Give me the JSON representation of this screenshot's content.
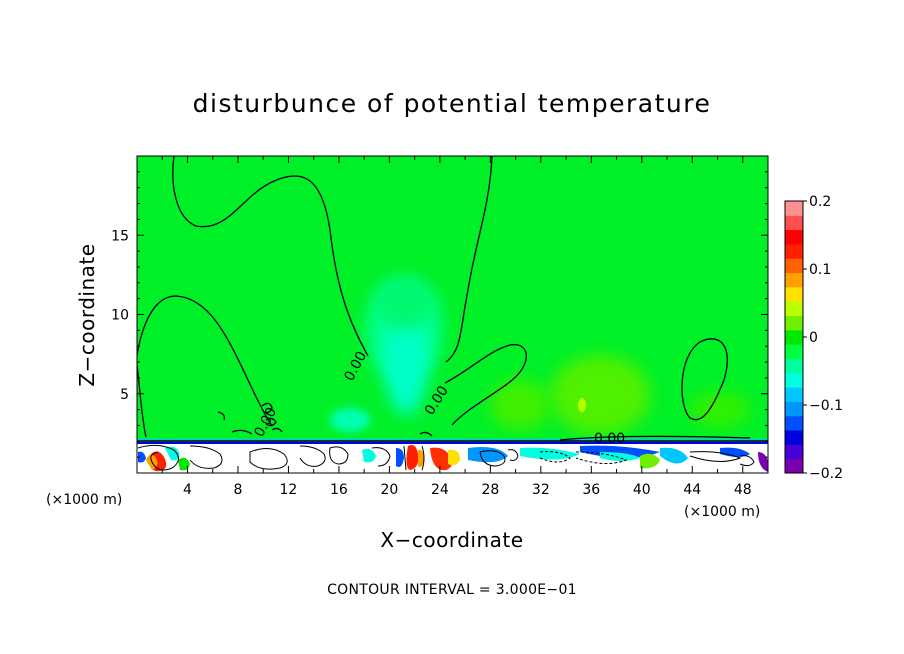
{
  "chart_data": {
    "type": "heatmap",
    "title": "disturbunce of potential temperature",
    "xlabel": "X−coordinate",
    "ylabel": "Z−coordinate",
    "x_unit_left": "(×1000 m)",
    "x_unit_right": "(×1000 m)",
    "xlim": [
      0,
      50
    ],
    "ylim": [
      0,
      20
    ],
    "x_ticks": [
      4,
      8,
      12,
      16,
      20,
      24,
      28,
      32,
      36,
      40,
      44,
      48
    ],
    "x_tick_labels": [
      "4",
      "8",
      "12",
      "16",
      "20",
      "24",
      "28",
      "32",
      "36",
      "40",
      "44",
      "48"
    ],
    "y_ticks": [
      5,
      10,
      15
    ],
    "y_tick_labels": [
      "5",
      "10",
      "15"
    ],
    "colorbar": {
      "range": [
        -0.2,
        0.2
      ],
      "tick_labels": [
        "0.2",
        "0.1",
        "0",
        "−0.1",
        "−0.2"
      ],
      "tick_values": [
        0.2,
        0.1,
        0,
        -0.1,
        -0.2
      ],
      "colors": [
        "#7a00b0",
        "#4800d8",
        "#0000e0",
        "#0050ff",
        "#0096ff",
        "#00c8ff",
        "#00ffe0",
        "#00ffa0",
        "#00ff40",
        "#00e800",
        "#70f000",
        "#b8ff00",
        "#ffe000",
        "#ffa000",
        "#ff6000",
        "#ff2000",
        "#ff0000",
        "#ff5050",
        "#ff9090"
      ]
    },
    "contour_labels": [
      "0.00",
      "0.00",
      "0.00",
      "0.00"
    ],
    "background_level": 0,
    "note": "CONTOUR INTERVAL = 3.000E−01"
  }
}
